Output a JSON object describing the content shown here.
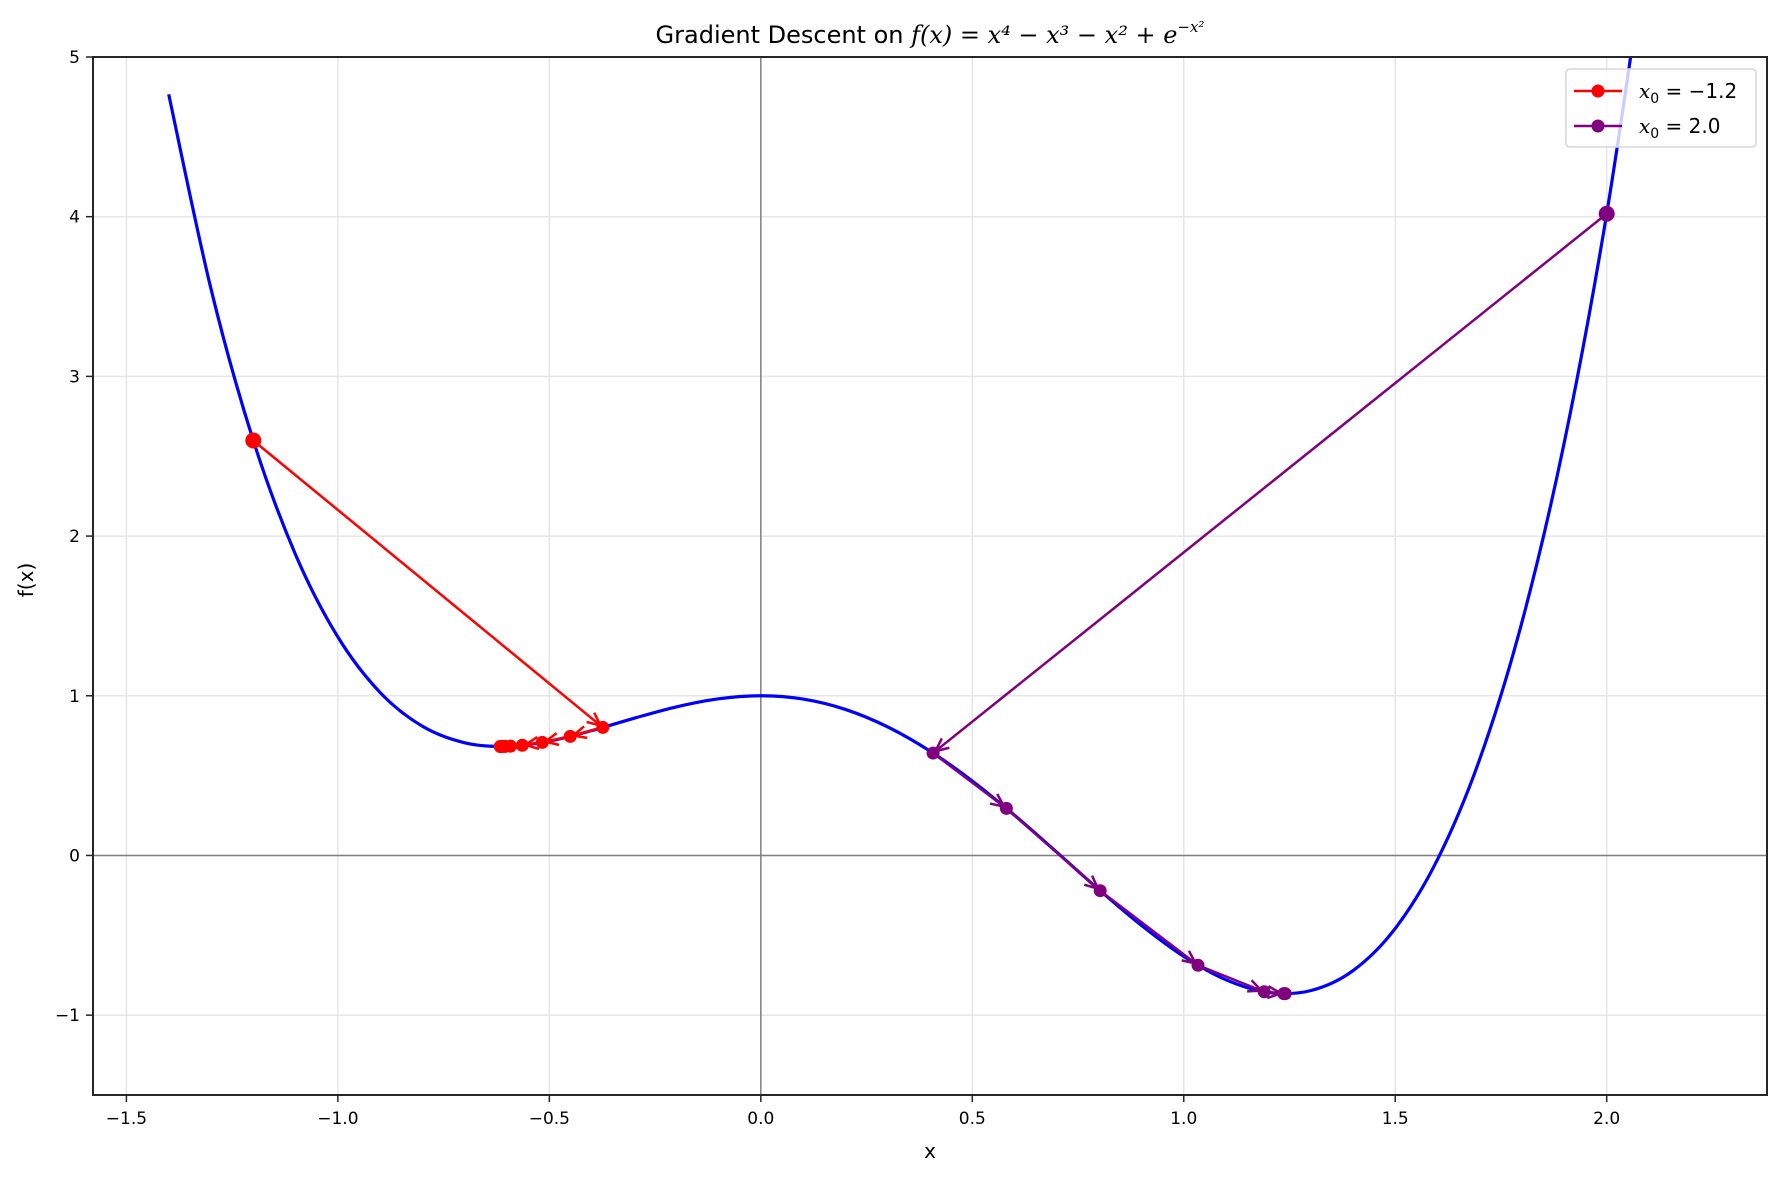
{
  "chart_data": {
    "type": "line",
    "title": "Gradient Descent on f(x) = x^4 − x^3 − x^2 + e^(−x^2)",
    "title_parts": {
      "prefix": "Gradient Descent on ",
      "formula": "f(x) = x⁴ − x³ − x² + e",
      "exponent": "−x²"
    },
    "xlabel": "x",
    "ylabel": "f(x)",
    "xlim": [
      -1.579,
      2.379
    ],
    "ylim": [
      -1.5,
      5
    ],
    "xticks": [
      -1.5,
      -1.0,
      -0.5,
      0.0,
      0.5,
      1.0,
      1.5,
      2.0
    ],
    "xtick_labels": [
      "−1.5",
      "−1.0",
      "−0.5",
      "0.0",
      "0.5",
      "1.0",
      "1.5",
      "2.0"
    ],
    "yticks": [
      -1,
      0,
      1,
      2,
      3,
      4,
      5
    ],
    "ytick_labels": [
      "−1",
      "0",
      "1",
      "2",
      "3",
      "4",
      "5"
    ],
    "grid": true,
    "zero_lines": true,
    "legend_position": "upper right",
    "curve": {
      "name": "f(x)",
      "color": "#0000ff",
      "x": [
        -1.4,
        -1.3,
        -1.2,
        -1.1,
        -1.0,
        -0.9,
        -0.8,
        -0.7,
        -0.6,
        -0.5,
        -0.4,
        -0.3,
        -0.2,
        -0.1,
        0.0,
        0.1,
        0.2,
        0.3,
        0.4,
        0.5,
        0.6,
        0.7,
        0.8,
        0.9,
        1.0,
        1.1,
        1.2,
        1.3,
        1.4,
        1.5,
        1.6,
        1.7,
        1.8,
        1.9,
        2.0,
        2.1
      ],
      "y": [
        4.7665,
        3.5476,
        2.5985,
        1.8833,
        1.3679,
        1.02,
        0.8089,
        0.7057,
        0.6833,
        0.7163,
        0.7817,
        0.859,
        0.9304,
        0.9811,
        1.0,
        0.9791,
        0.9144,
        0.805,
        0.6537,
        0.4663,
        0.2513,
        0.0197,
        -0.2151,
        -0.438,
        -0.6321,
        -0.7787,
        -0.8575,
        -0.8464,
        -0.7215,
        -0.4571,
        -0.0251,
        0.6047,
        1.4648,
        2.5902,
        4.0183,
        5.7893
      ]
    },
    "series": [
      {
        "name": "x₀ = −1.2",
        "legend_var": "x",
        "legend_sub": "0",
        "legend_value": " = −1.2",
        "color": "#ff0000",
        "x": [
          -1.2,
          -0.3737,
          -0.4506,
          -0.5168,
          -0.564,
          -0.5917,
          -0.6055,
          -0.6118,
          -0.6144,
          -0.6155,
          -0.616
        ],
        "y": [
          2.5985,
          0.8017,
          0.7459,
          0.7079,
          0.6901,
          0.6843,
          0.6829,
          0.6826,
          0.6825,
          0.6825,
          0.6825
        ]
      },
      {
        "name": "x₀ = 2.0",
        "legend_var": "x",
        "legend_sub": "0",
        "legend_value": " = 2.0",
        "color": "#800080",
        "x": [
          2.0,
          0.4073,
          0.5806,
          0.8024,
          1.0337,
          1.1902,
          1.2365,
          1.2399
        ],
        "y": [
          4.0183,
          0.6411,
          0.2948,
          -0.2207,
          -0.6878,
          -0.8534,
          -0.8651,
          -0.8651
        ]
      }
    ]
  }
}
